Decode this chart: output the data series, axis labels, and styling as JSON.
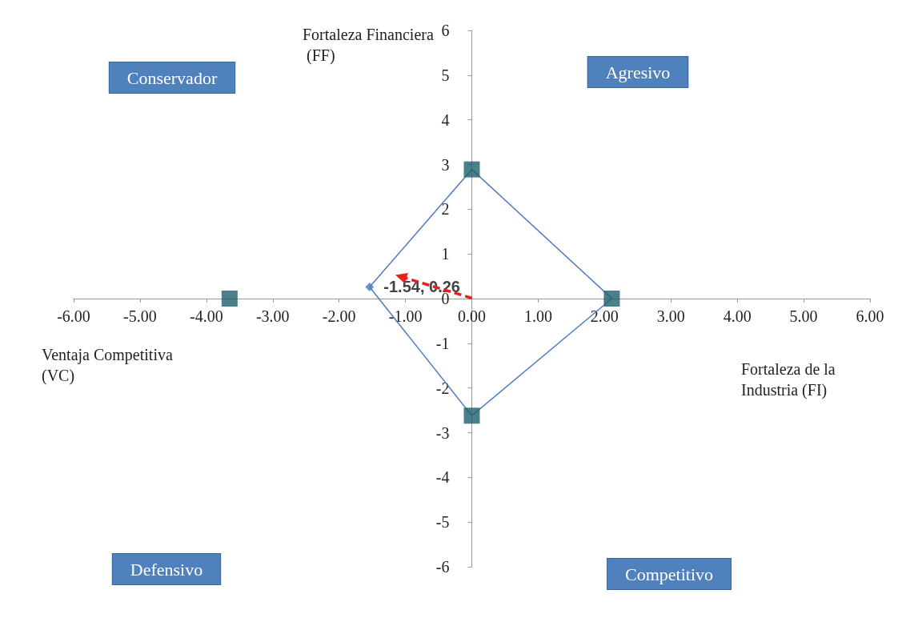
{
  "chart_data": {
    "type": "scatter",
    "xlabel": "Fortaleza de la Industria (FI)",
    "ylabel": "Fortaleza Financiera (FF)",
    "annotations": [
      "Conservador",
      "Agresivo",
      "Defensivo",
      "Competitivo",
      "Ventaja Competitiva (VC)"
    ],
    "xlim": [
      -6,
      6
    ],
    "xticks": [
      {
        "value": -6,
        "label": "-6.00"
      },
      {
        "value": -5,
        "label": "-5.00"
      },
      {
        "value": -4,
        "label": "-4.00"
      },
      {
        "value": -3,
        "label": "-3.00"
      },
      {
        "value": -2,
        "label": "-2.00"
      },
      {
        "value": -1,
        "label": "-1.00"
      },
      {
        "value": 0,
        "label": "0.00"
      },
      {
        "value": 1,
        "label": "1.00"
      },
      {
        "value": 2,
        "label": "2.00"
      },
      {
        "value": 3,
        "label": "3.00"
      },
      {
        "value": 4,
        "label": "4.00"
      },
      {
        "value": 5,
        "label": "5.00"
      },
      {
        "value": 6,
        "label": "6.00"
      }
    ],
    "ylim": [
      -6,
      6
    ],
    "yticks": [
      -6,
      -5,
      -4,
      -3,
      -2,
      -1,
      0,
      1,
      2,
      3,
      4,
      5,
      6
    ],
    "grid": false,
    "series": [
      {
        "type": "scatter",
        "marker": "square",
        "color": "#1e5f6b",
        "x": [
          -3.65,
          0,
          2.11,
          0
        ],
        "values": [
          0,
          2.89,
          0,
          -2.62
        ]
      },
      {
        "type": "line",
        "marker": "none",
        "color": "#4f7ac0",
        "x": [
          -1.54,
          0,
          2.11
        ],
        "values": [
          0.26,
          2.89,
          0
        ]
      },
      {
        "type": "line",
        "marker": "none",
        "color": "#4f7ac0",
        "x": [
          -1.54,
          0,
          2.11
        ],
        "values": [
          0.26,
          -2.62,
          0
        ]
      },
      {
        "type": "scatter",
        "marker": "diamond",
        "color": "#4f7ac0",
        "x": [
          -1.54
        ],
        "values": [
          0.26
        ],
        "value_labels": [
          "-1.54, 0.26"
        ]
      }
    ]
  }
}
